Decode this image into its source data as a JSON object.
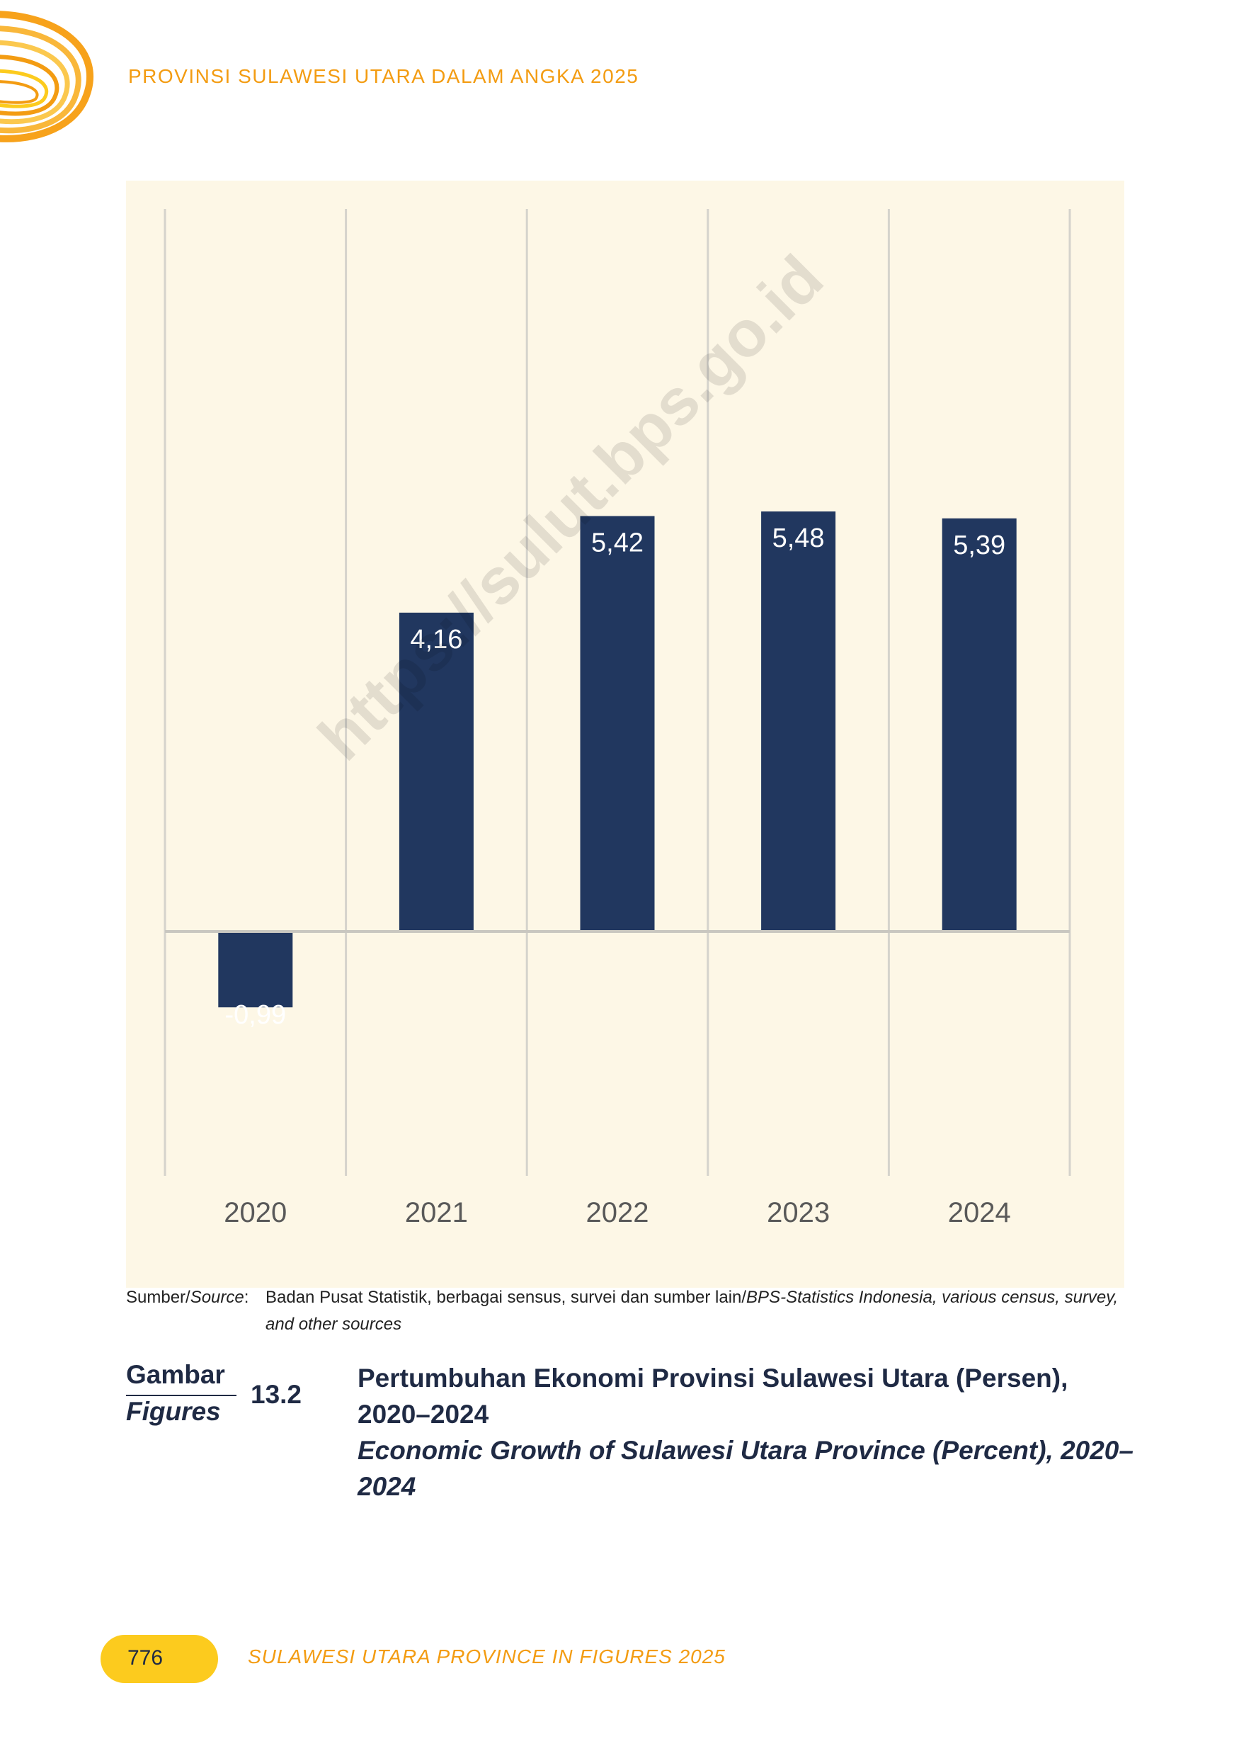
{
  "header": {
    "running_title": "PROVINSI SULAWESI UTARA DALAM ANGKA 2025"
  },
  "colors": {
    "bar": "#21375f",
    "chart_background": "#fdf7e6",
    "accent_orange": "#f39c12",
    "accent_yellow": "#fccb1e"
  },
  "chart_data": {
    "type": "bar",
    "categories": [
      "2020",
      "2021",
      "2022",
      "2023",
      "2024"
    ],
    "values": [
      -0.99,
      4.16,
      5.42,
      5.48,
      5.39
    ],
    "data_labels": [
      "-0,99",
      "4,16",
      "5,42",
      "5,48",
      "5,39"
    ],
    "ylim": [
      -2,
      6
    ],
    "grid": "vertical lines between categories",
    "legend": "none"
  },
  "watermark": "https://sulut.bps.go.id",
  "source": {
    "label_plain": "Sumber/",
    "label_italic": "Source",
    "label_colon": ":",
    "text_plain": "Badan Pusat Statistik, berbagai sensus, survei dan sumber lain/",
    "text_italic": "BPS-Statistics Indonesia, various census, survey, and other sources"
  },
  "figure": {
    "word": "Gambar",
    "word_en": "Figures",
    "number": "13.2",
    "title": "Pertumbuhan Ekonomi Provinsi Sulawesi Utara (Persen), 2020–2024",
    "title_en": "Economic Growth of Sulawesi Utara Province (Percent), 2020–2024"
  },
  "footer": {
    "page_number": "776",
    "running_title": "SULAWESI UTARA PROVINCE IN FIGURES 2025"
  }
}
